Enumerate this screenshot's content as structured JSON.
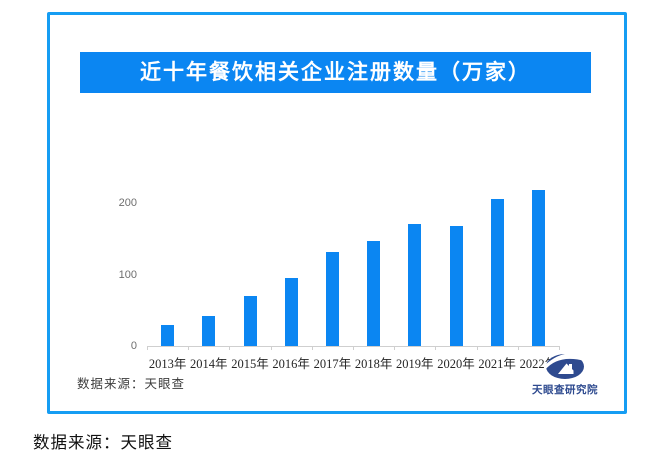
{
  "title": {
    "text": "近十年餐饮相关企业注册数量（万家）"
  },
  "colors": {
    "primary_blue": "#0b86f2",
    "frame_border_blue": "#159df3",
    "logo_navy": "#2e4a8f",
    "axis_gray": "#cfcfcf",
    "y_label_gray": "#6e6e6e",
    "x_label_dark": "#262626"
  },
  "chart_data": {
    "type": "bar",
    "title": "近十年餐饮相关企业注册数量（万家）",
    "categories": [
      "2013年",
      "2014年",
      "2015年",
      "2016年",
      "2017年",
      "2018年",
      "2019年",
      "2020年",
      "2021年",
      "2022年"
    ],
    "values": [
      30,
      42,
      70,
      95,
      132,
      147,
      171,
      168,
      205,
      218
    ],
    "unit": "万家",
    "xlabel": "",
    "ylabel": "",
    "ylim": [
      0,
      240
    ],
    "yticks": [
      0,
      100,
      200
    ],
    "grid": false,
    "legend": false,
    "bar_color": "#0b86f2"
  },
  "source_note": "数据来源：天眼查",
  "logo": {
    "name": "天眼查研究院",
    "icon": "tianyancha-eye-logo"
  },
  "caption": "数据来源：天眼查"
}
